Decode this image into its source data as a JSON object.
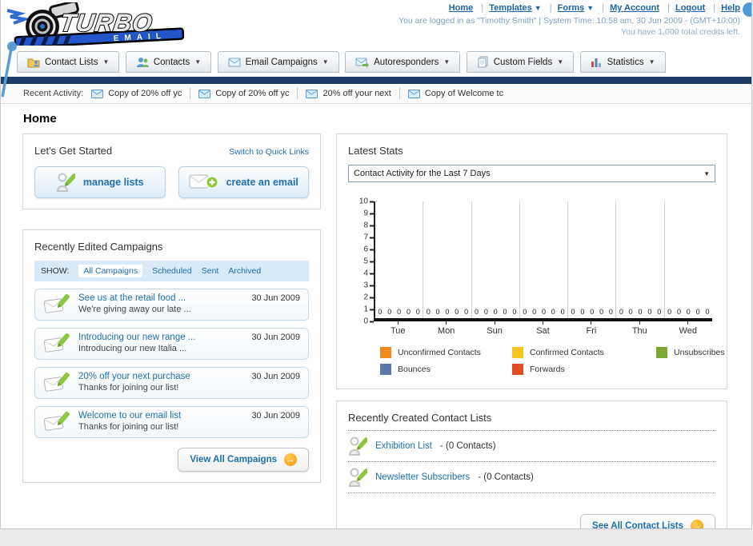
{
  "header": {
    "nav_links": [
      {
        "label": "Home"
      },
      {
        "label": "Templates"
      },
      {
        "label": "Forms"
      },
      {
        "label": "My Account"
      },
      {
        "label": "Logout"
      },
      {
        "label": "Help"
      }
    ],
    "login_status": "You are logged in as \"Timothy Smith\" | System Time: 10:58 am, 30 Jun 2009 - (GMT+10:00)",
    "credits": "You have 1,000 total credits left."
  },
  "nav_tabs": [
    {
      "label": "Contact Lists"
    },
    {
      "label": "Contacts"
    },
    {
      "label": "Email Campaigns"
    },
    {
      "label": "Autoresponders"
    },
    {
      "label": "Custom Fields"
    },
    {
      "label": "Statistics"
    }
  ],
  "recent_activity": {
    "label": "Recent Activity:",
    "items": [
      {
        "text": "Copy of 20% off yc"
      },
      {
        "text": "Copy of 20% off yc"
      },
      {
        "text": "20% off your next"
      },
      {
        "text": "Copy of Welcome tc"
      }
    ]
  },
  "page_title": "Home",
  "get_started": {
    "title": "Let's Get Started",
    "switch_link": "Switch to Quick Links",
    "manage_lists_label": "manage lists",
    "create_email_label": "create an email"
  },
  "campaigns_panel": {
    "title": "Recently Edited Campaigns",
    "show_label": "SHOW:",
    "filters": [
      {
        "label": "All Campaigns"
      },
      {
        "label": "Scheduled"
      },
      {
        "label": "Sent"
      },
      {
        "label": "Archived"
      }
    ],
    "active_filter": "All Campaigns",
    "items": [
      {
        "title": "See us at the retail food ...",
        "subtitle": "We're giving away our late ...",
        "date": "30 Jun 2009"
      },
      {
        "title": "Introducing our new range ...",
        "subtitle": "Introducing our new Italia ...",
        "date": "30 Jun 2009"
      },
      {
        "title": "20% off your next purchase",
        "subtitle": "Thanks for joining our list!",
        "date": "30 Jun 2009"
      },
      {
        "title": "Welcome to our email list",
        "subtitle": "Thanks for joining our list!",
        "date": "30 Jun 2009"
      }
    ],
    "view_all_label": "View All Campaigns"
  },
  "stats_panel": {
    "title": "Latest Stats",
    "selected_option": "Contact Activity for the Last 7 Days"
  },
  "chart_data": {
    "type": "bar",
    "title": "Contact Activity for the Last 7 Days",
    "categories": [
      "Tue",
      "Mon",
      "Sun",
      "Sat",
      "Fri",
      "Thu",
      "Wed"
    ],
    "series": [
      {
        "name": "Unconfirmed Contacts",
        "color": "#f08a1d",
        "values": [
          0,
          0,
          0,
          0,
          0,
          0,
          0
        ]
      },
      {
        "name": "Confirmed Contacts",
        "color": "#f6c51f",
        "values": [
          0,
          0,
          0,
          0,
          0,
          0,
          0
        ]
      },
      {
        "name": "Unsubscribes",
        "color": "#7da733",
        "values": [
          0,
          0,
          0,
          0,
          0,
          0,
          0
        ]
      },
      {
        "name": "Bounces",
        "color": "#5b78a8",
        "values": [
          0,
          0,
          0,
          0,
          0,
          0,
          0
        ]
      },
      {
        "name": "Forwards",
        "color": "#e34d26",
        "values": [
          0,
          0,
          0,
          0,
          0,
          0,
          0
        ]
      }
    ],
    "ylim": [
      0,
      10
    ],
    "yticks": [
      0,
      1,
      2,
      3,
      4,
      5,
      6,
      7,
      8,
      9,
      10
    ],
    "grid": "vertical-between-groups",
    "legend_position": "bottom"
  },
  "contact_lists_panel": {
    "title": "Recently Created Contact Lists",
    "items": [
      {
        "name": "Exhibition List",
        "suffix": "- (0 Contacts)"
      },
      {
        "name": "Newsletter Subscribers",
        "suffix": "- (0 Contacts)"
      }
    ],
    "see_all_label": "See All Contact Lists"
  }
}
